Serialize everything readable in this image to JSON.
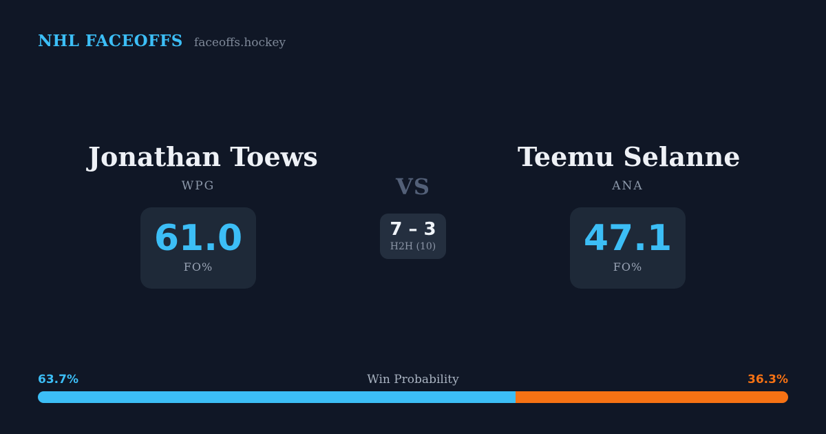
{
  "header": {
    "title": "NHL FACEOFFS",
    "subtitle": "faceoffs.hockey"
  },
  "matchup": {
    "left": {
      "name": "Jonathan Toews",
      "team": "WPG",
      "stat_value": "61.0",
      "stat_label": "FO%"
    },
    "right": {
      "name": "Teemu Selanne",
      "team": "ANA",
      "stat_value": "47.1",
      "stat_label": "FO%"
    },
    "vs_label": "VS",
    "h2h": {
      "record": "7 – 3",
      "label": "H2H (10)"
    }
  },
  "win_probability": {
    "title": "Win Probability",
    "left_pct": "63.7%",
    "right_pct": "36.3%",
    "left_value": 63.7,
    "right_value": 36.3
  },
  "chart_data": {
    "type": "bar",
    "title": "Win Probability",
    "categories": [
      "Jonathan Toews (WPG)",
      "Teemu Selanne (ANA)"
    ],
    "values": [
      63.7,
      36.3
    ],
    "colors": [
      "#3cbef6",
      "#f67214"
    ],
    "layout": "horizontal-stacked-percent"
  },
  "colors": {
    "background": "#101726",
    "card": "#1e2938",
    "h2h_card": "#242f3f",
    "accent_blue": "#3cbef6",
    "accent_orange": "#f67214",
    "text_primary": "#eef1f6",
    "text_muted": "#8d99ab",
    "vs_text": "#536078"
  }
}
